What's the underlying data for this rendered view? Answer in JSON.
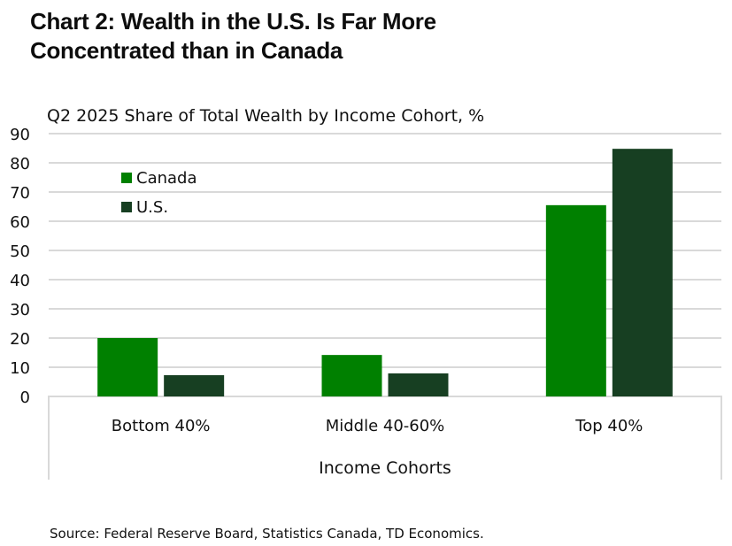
{
  "title": "Chart 2: Wealth in the U.S. Is Far More Concentrated than in Canada",
  "title_lines": [
    "Chart 2: Wealth in the U.S. Is Far More",
    "Concentrated than in Canada"
  ],
  "source": "Source: Federal Reserve Board, Statistics Canada, TD Economics.",
  "chart_data": {
    "type": "bar",
    "title": "Chart 2: Wealth in the U.S. Is Far More Concentrated than in Canada",
    "subtitle": "Q2 2025 Share of Total Wealth by Income Cohort, %",
    "xlabel": "Income Cohorts",
    "ylabel": "",
    "categories": [
      "Bottom 40%",
      "Middle 40-60%",
      "Top 40%"
    ],
    "series": [
      {
        "name": "Canada",
        "color": "#008000",
        "values": [
          20.0,
          14.2,
          65.5
        ]
      },
      {
        "name": "U.S.",
        "color": "#173f22",
        "values": [
          7.3,
          7.9,
          84.8
        ]
      }
    ],
    "ylim": [
      0,
      90
    ],
    "yticks": [
      0,
      10,
      20,
      30,
      40,
      50,
      60,
      70,
      80,
      90
    ],
    "ytick_labels": [
      "0",
      "10",
      "20",
      "30",
      "40",
      "50",
      "60",
      "70",
      "80",
      "90"
    ],
    "grid": true,
    "legend_position": "top-left"
  }
}
